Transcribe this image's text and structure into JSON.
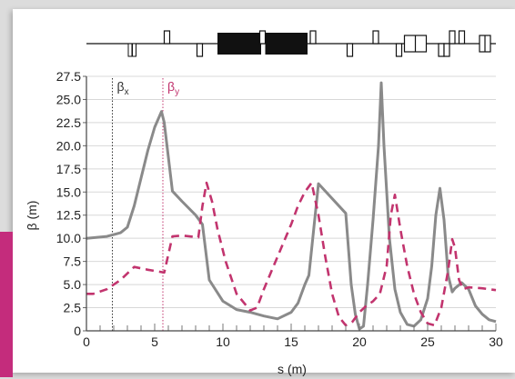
{
  "colors": {
    "beta_x": "#8a8a8a",
    "beta_y": "#c2346e",
    "accent": "#c42c7c",
    "magnets": "#111111",
    "grid": "#d8d8d8"
  },
  "chart_data": {
    "type": "line",
    "xlabel": "s (m)",
    "ylabel": "β (m)",
    "xlim": [
      0,
      30
    ],
    "ylim": [
      0,
      27.5
    ],
    "xticks": [
      "0",
      "5",
      "10",
      "15",
      "20",
      "25",
      "30"
    ],
    "yticks": [
      "0",
      "2.5",
      "5.0",
      "7.5",
      "10.0",
      "12.5",
      "15.0",
      "17.5",
      "20.0",
      "22.5",
      "25.0",
      "27.5"
    ],
    "grid": true,
    "annotations": [
      {
        "label": "βx",
        "x": 1.9,
        "series": "beta_x"
      },
      {
        "label": "βy",
        "x": 5.6,
        "series": "beta_y"
      }
    ],
    "series": [
      {
        "id": "beta_x",
        "style": "solid",
        "x": [
          0,
          1.5,
          2.5,
          3.0,
          3.5,
          4.0,
          4.5,
          5.0,
          5.5,
          5.7,
          6.3,
          7.0,
          8.0,
          8.5,
          9.0,
          10,
          11,
          12,
          13,
          14,
          15,
          15.5,
          16,
          16.3,
          17,
          19,
          19.4,
          19.7,
          20,
          20.3,
          20.6,
          21.0,
          21.4,
          21.6,
          21.8,
          22.2,
          22.6,
          23.0,
          23.5,
          24,
          24.5,
          25,
          25.3,
          25.6,
          25.9,
          26.2,
          26.5,
          26.8,
          27.0,
          27.5,
          28,
          28.5,
          29,
          29.5,
          30
        ],
        "values": [
          10,
          10.2,
          10.6,
          11.2,
          13.5,
          16.5,
          19.5,
          22,
          23.7,
          22.5,
          15.1,
          14,
          12.5,
          11.5,
          5.5,
          3.2,
          2.3,
          2.0,
          1.6,
          1.3,
          2.0,
          3.0,
          5.0,
          6.0,
          15.9,
          12.7,
          5.0,
          1.8,
          0.2,
          0.5,
          5.0,
          12.0,
          20.0,
          26.8,
          20.0,
          10.0,
          4.5,
          2.0,
          0.7,
          0.5,
          1.2,
          3.5,
          7.0,
          12.5,
          15.4,
          12.0,
          6.0,
          4.2,
          4.6,
          5.2,
          4.5,
          2.7,
          1.8,
          1.2,
          1.0
        ]
      },
      {
        "id": "beta_y",
        "style": "dashed",
        "x": [
          0,
          0.5,
          1.5,
          2.5,
          3.5,
          4.5,
          5.3,
          5.7,
          6.3,
          7.0,
          8.2,
          8.5,
          8.8,
          9.2,
          9.6,
          10.2,
          11,
          12,
          12.5,
          13,
          14,
          15,
          15.5,
          16,
          16.5,
          17,
          17.5,
          18,
          18.5,
          19,
          19.5,
          20,
          20.5,
          21,
          21.5,
          22,
          22.3,
          22.6,
          23,
          23.5,
          24,
          24.5,
          25,
          25.5,
          26,
          26.5,
          26.8,
          27.0,
          27.3,
          27.6,
          28,
          29,
          30
        ],
        "values": [
          4.0,
          4.0,
          4.5,
          5.5,
          6.9,
          6.6,
          6.4,
          6.3,
          10.2,
          10.3,
          10.1,
          13.5,
          16.0,
          14.0,
          11.0,
          7.5,
          4.0,
          2.2,
          2.5,
          4.5,
          8.0,
          11.5,
          13.5,
          15.0,
          16.0,
          12.5,
          8.0,
          4.0,
          1.5,
          0.6,
          1.0,
          2.0,
          2.7,
          3.2,
          4.0,
          7.0,
          12.5,
          14.7,
          11.0,
          7.0,
          4.0,
          2.0,
          0.8,
          0.6,
          2.5,
          6.5,
          9.9,
          9.0,
          5.5,
          4.5,
          4.7,
          4.6,
          4.4
        ]
      }
    ]
  },
  "lattice": {
    "description_free": true,
    "elements": [
      {
        "type": "bar",
        "s": 3.2
      },
      {
        "type": "bar",
        "s": 3.5
      },
      {
        "type": "quad",
        "s": 5.9,
        "dir": "up"
      },
      {
        "type": "quad",
        "s": 8.3,
        "dir": "down"
      },
      {
        "type": "dipole",
        "s0": 9.6,
        "s1": 12.8
      },
      {
        "type": "quad",
        "s": 12.9,
        "dir": "up"
      },
      {
        "type": "dipole",
        "s0": 13.1,
        "s1": 16.2
      },
      {
        "type": "quad",
        "s": 16.6,
        "dir": "up"
      },
      {
        "type": "quad",
        "s": 19.3,
        "dir": "down"
      },
      {
        "type": "quad",
        "s": 21.2,
        "dir": "up"
      },
      {
        "type": "quad",
        "s": 22.9,
        "dir": "down"
      },
      {
        "type": "box",
        "s0": 23.3,
        "s1": 24.9
      },
      {
        "type": "quad",
        "s": 26.0,
        "dir": "down"
      },
      {
        "type": "quad",
        "s": 26.4,
        "dir": "down"
      },
      {
        "type": "quad",
        "s": 26.8,
        "dir": "up"
      },
      {
        "type": "quad",
        "s": 27.5,
        "dir": "up"
      },
      {
        "type": "box",
        "s0": 28.8,
        "s1": 29.6
      }
    ]
  }
}
